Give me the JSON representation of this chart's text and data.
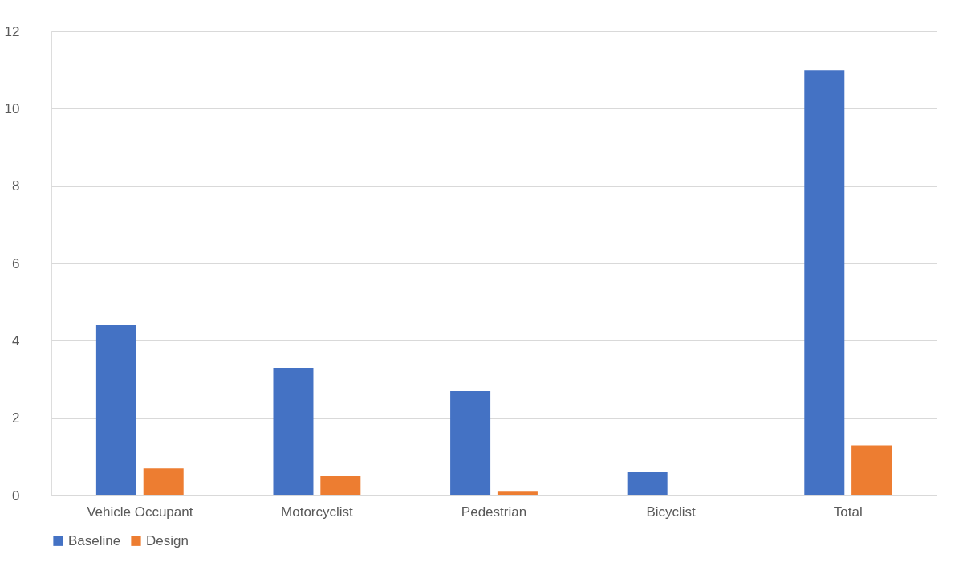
{
  "chart_data": {
    "type": "bar",
    "categories": [
      "Vehicle Occupant",
      "Motorcyclist",
      "Pedestrian",
      "Bicyclist",
      "Total"
    ],
    "series": [
      {
        "name": "Baseline",
        "color": "#4472c4",
        "values": [
          4.4,
          3.3,
          2.7,
          0.6,
          11.0
        ]
      },
      {
        "name": "Design",
        "color": "#ed7d31",
        "values": [
          0.7,
          0.5,
          0.1,
          0,
          1.3
        ]
      }
    ],
    "ylim": [
      0,
      12
    ],
    "yticks": [
      0,
      2,
      4,
      6,
      8,
      10,
      12
    ],
    "grid": "y",
    "legend": "bottom"
  }
}
